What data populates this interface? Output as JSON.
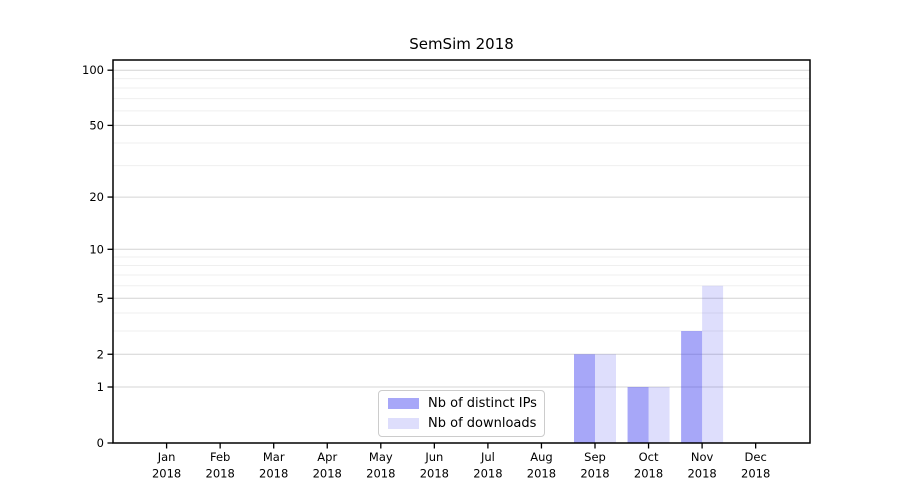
{
  "title": "SemSim 2018",
  "legend": {
    "items": [
      {
        "label": "Nb of distinct IPs",
        "color": "rgba(60,60,240,0.45)"
      },
      {
        "label": "Nb of downloads",
        "color": "rgba(60,60,240,0.17)"
      }
    ]
  },
  "chart_data": {
    "type": "bar",
    "title": "SemSim 2018",
    "categories": [
      "Jan 2018",
      "Feb 2018",
      "Mar 2018",
      "Apr 2018",
      "May 2018",
      "Jun 2018",
      "Jul 2018",
      "Aug 2018",
      "Sep 2018",
      "Oct 2018",
      "Nov 2018",
      "Dec 2018"
    ],
    "series": [
      {
        "name": "Nb of distinct IPs",
        "color": "rgba(60,60,240,0.45)",
        "values": [
          0,
          0,
          0,
          0,
          0,
          0,
          0,
          0,
          2,
          1,
          3,
          0
        ]
      },
      {
        "name": "Nb of downloads",
        "color": "rgba(60,60,240,0.17)",
        "values": [
          0,
          0,
          0,
          0,
          0,
          0,
          0,
          0,
          2,
          1,
          6,
          0
        ]
      }
    ],
    "xlabel": "",
    "ylabel": "",
    "yscale": "log-like (position proportional to log10(1+y))",
    "y_major_ticks": [
      0,
      1,
      2,
      5,
      10,
      20,
      50,
      100
    ],
    "y_minor_gridlines": [
      3,
      4,
      6,
      7,
      8,
      9,
      30,
      40,
      60,
      70,
      80,
      90
    ],
    "ylim": [
      0,
      113
    ],
    "grid": "horizontal major+minor",
    "legend_position": "lower center inside axes",
    "colors": {
      "major_grid": "#d4d4d4",
      "minor_grid": "#efefef",
      "spine": "#000000",
      "text": "#000000"
    }
  }
}
